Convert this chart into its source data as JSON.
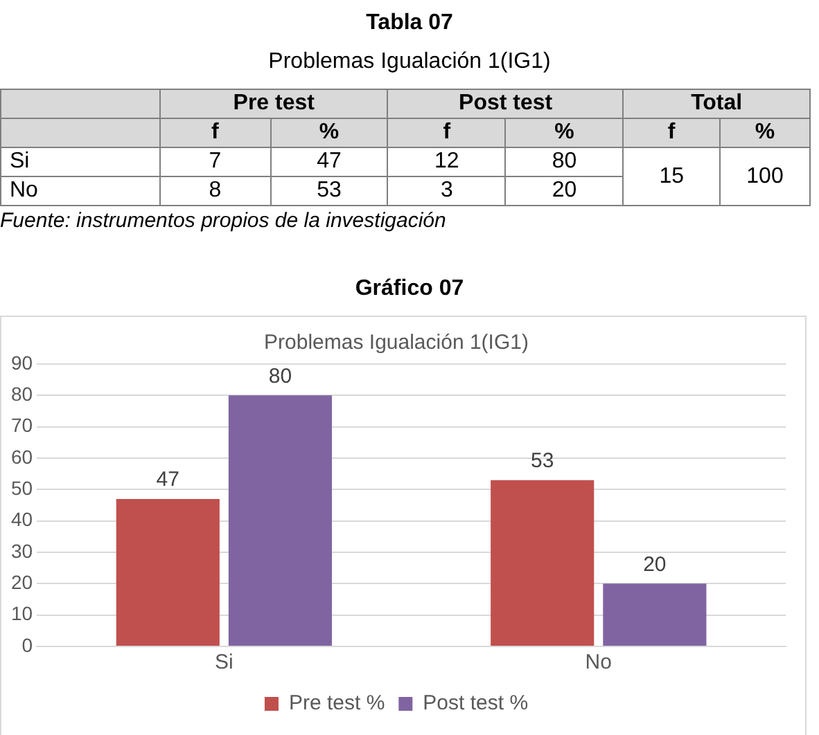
{
  "chart_data": [
    {
      "type": "other",
      "title": "Tabla 07",
      "subtitle": "Problemas Igualación 1(IG1)",
      "annotations": [
        "Pre test",
        "Post test",
        "Total",
        "f",
        "%",
        "f",
        "%",
        "f",
        "%",
        "Si",
        "7",
        "47",
        "12",
        "80",
        "15",
        "100",
        "No",
        "8",
        "53",
        "3",
        "20",
        "Fuente: instrumentos propios de la investigación"
      ]
    },
    {
      "type": "bar",
      "title": "Gráfico 07",
      "subtitle": "Problemas Igualación 1(IG1)",
      "categories": [
        "Si",
        "No"
      ],
      "series": [
        {
          "name": "Pre test %",
          "color": "#c0504d",
          "values": [
            47,
            53
          ]
        },
        {
          "name": "Post test %",
          "color": "#8064a2",
          "values": [
            80,
            20
          ]
        }
      ],
      "ylim": [
        0,
        90
      ],
      "yticks": [
        0,
        10,
        20,
        30,
        40,
        50,
        60,
        70,
        80,
        90
      ],
      "grid": "y",
      "legend": "bottom",
      "data_labels": true
    }
  ]
}
